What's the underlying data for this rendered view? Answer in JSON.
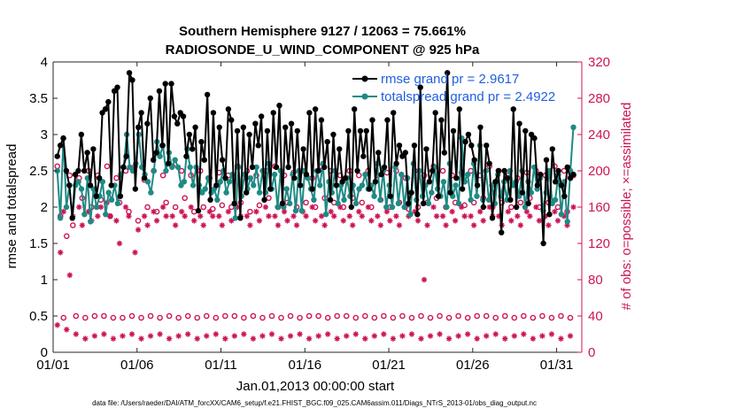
{
  "chart_data": {
    "type": "line",
    "title_line1": "Southern Hemisphere 9127 / 12063 = 75.661%",
    "title_line2": "RADIOSONDE_U_WIND_COMPONENT @ 925 hPa",
    "xlabel": "Jan.01,2013 00:00:00 start",
    "ylabel_left": "rmse and totalspread",
    "ylabel_right": "# of obs: o=possible; ×=assimilated",
    "footer": "data file: /Users/raeder/DAI/ATM_forcXX/CAM6_setup/f.e21.FHIST_BGC.f09_025.CAM6assim.011/Diags_NTrS_2013-01/obs_diag_output.nc",
    "xlim": [
      0,
      31.5
    ],
    "ylim_left": [
      0,
      4
    ],
    "ylim_right": [
      0,
      320
    ],
    "x_ticks": [
      0,
      5,
      10,
      15,
      20,
      25,
      30
    ],
    "x_tick_labels": [
      "01/01",
      "01/06",
      "01/11",
      "01/16",
      "01/21",
      "01/26",
      "01/31"
    ],
    "y_left_ticks": [
      0,
      0.5,
      1,
      1.5,
      2,
      2.5,
      3,
      3.5,
      4
    ],
    "y_left_tick_labels": [
      "0",
      "0.5",
      "1",
      "1.5",
      "2",
      "2.5",
      "3",
      "3.5",
      "4"
    ],
    "y_right_ticks": [
      0,
      40,
      80,
      120,
      160,
      200,
      240,
      280,
      320
    ],
    "y_right_tick_labels": [
      "0",
      "40",
      "80",
      "120",
      "160",
      "200",
      "240",
      "280",
      "320"
    ],
    "colors": {
      "rmse": "#000000",
      "totalspread": "#1f8a84",
      "obs": "#cc1456",
      "legend_text": "#1f5fe0"
    },
    "legend": [
      {
        "name": "rmse grand pr = 2.9617",
        "series": "rmse"
      },
      {
        "name": "totalspread grand pr = 2.4922",
        "series": "totalspread"
      }
    ],
    "series": [
      {
        "name": "rmse",
        "values": [
          2.7,
          2.85,
          2.95,
          2.5,
          2.3,
          1.85,
          2.45,
          2.5,
          3.0,
          2.5,
          2.75,
          2.3,
          2.8,
          2.15,
          2.4,
          3.3,
          3.35,
          3.45,
          2.3,
          3.6,
          3.65,
          2.15,
          2.55,
          2.7,
          3.85,
          3.75,
          2.25,
          3.1,
          3.3,
          2.4,
          3.15,
          3.5,
          2.65,
          2.75,
          3.6,
          2.85,
          3.7,
          2.6,
          3.7,
          3.25,
          3.15,
          3.3,
          3.25,
          2.7,
          3.0,
          2.8,
          3.1,
          1.95,
          2.9,
          2.65,
          3.55,
          2.1,
          3.3,
          2.3,
          3.1,
          2.65,
          2.4,
          3.35,
          3.2,
          2.05,
          3.05,
          1.85,
          3.1,
          2.2,
          3.0,
          2.55,
          3.15,
          2.85,
          3.25,
          2.1,
          3.05,
          2.25,
          3.3,
          2.55,
          3.4,
          2.05,
          3.1,
          2.55,
          3.15,
          2.4,
          3.05,
          2.3,
          2.8,
          2.45,
          3.3,
          2.25,
          3.35,
          2.5,
          3.2,
          2.55,
          2.9,
          2.1,
          3.0,
          2.3,
          2.8,
          2.35,
          2.4,
          3.05,
          2.0,
          3.35,
          2.5,
          3.05,
          2.7,
          3.05,
          2.25,
          3.2,
          2.35,
          2.75,
          2.45,
          2.55,
          3.2,
          2.15,
          3.3,
          2.6,
          2.85,
          2.7,
          2.75,
          2.05,
          2.2,
          2.85,
          1.9,
          3.65,
          2.05,
          2.8,
          2.35,
          2.5,
          3.3,
          2.15,
          3.2,
          2.75,
          3.85,
          2.2,
          3.05,
          2.4,
          3.35,
          2.25,
          2.9,
          3.0,
          2.85,
          2.65,
          2.3,
          3.1,
          2.0,
          2.85,
          2.6,
          1.85,
          2.35,
          2.5,
          1.65,
          2.5,
          2.4,
          2.1,
          3.35,
          2.0,
          3.15,
          2.2,
          3.05,
          2.05,
          3.0,
          2.95,
          2.3,
          2.45,
          1.5,
          2.65,
          1.9,
          2.8,
          2.35,
          2.5,
          2.3,
          2.15,
          2.55,
          2.4,
          2.45
        ]
      },
      {
        "name": "totalspread",
        "values": [
          2.5,
          1.85,
          2.95,
          2.0,
          2.3,
          1.85,
          2.3,
          2.35,
          2.25,
          1.9,
          2.4,
          1.8,
          2.25,
          2.0,
          2.15,
          2.35,
          1.9,
          2.2,
          2.1,
          2.3,
          2.05,
          2.45,
          2.55,
          3.0,
          2.55,
          2.5,
          2.6,
          3.0,
          2.55,
          2.45,
          2.35,
          2.2,
          2.5,
          2.9,
          2.7,
          2.85,
          2.5,
          2.75,
          2.55,
          2.65,
          2.55,
          2.3,
          2.35,
          2.8,
          2.55,
          2.3,
          2.55,
          2.3,
          2.2,
          2.25,
          2.4,
          2.2,
          2.25,
          2.1,
          2.35,
          2.5,
          2.2,
          2.35,
          2.45,
          1.85,
          2.55,
          2.15,
          2.45,
          2.25,
          2.4,
          2.3,
          2.55,
          2.2,
          2.5,
          2.2,
          2.6,
          2.25,
          2.45,
          2.0,
          2.5,
          2.0,
          2.25,
          2.05,
          2.45,
          1.95,
          2.5,
          1.95,
          2.5,
          2.4,
          2.25,
          2.1,
          2.5,
          2.3,
          2.6,
          1.9,
          2.35,
          2.2,
          2.5,
          2.05,
          2.3,
          2.1,
          2.4,
          2.15,
          2.3,
          2.05,
          2.25,
          2.3,
          2.45,
          2.25,
          2.3,
          2.15,
          2.6,
          2.1,
          2.5,
          2.0,
          2.3,
          2.0,
          2.55,
          2.05,
          2.45,
          2.0,
          2.4,
          1.9,
          2.6,
          2.1,
          2.5,
          2.15,
          2.3,
          2.05,
          2.2,
          2.55,
          2.25,
          2.15,
          2.35,
          2.0,
          2.6,
          2.15,
          2.3,
          2.05,
          2.95,
          2.35,
          2.45,
          2.1,
          2.6,
          2.15,
          2.85,
          2.1,
          2.5,
          2.1,
          2.3,
          2.05,
          2.45,
          2.15,
          2.35,
          2.1,
          2.5,
          2.3,
          2.35,
          2.15,
          2.5,
          2.0,
          2.35,
          2.2,
          2.55,
          2.25,
          2.4,
          1.95,
          2.2,
          2.5,
          2.05,
          2.1,
          2.45,
          1.9,
          2.35,
          1.8,
          2.5,
          3.1
        ]
      },
      {
        "name": "obs_possible",
        "axis": "right",
        "values": [
          205,
          150,
          38,
          128,
          195,
          140,
          40,
          192,
          170,
          38,
          200,
          160,
          40,
          195,
          168,
          40,
          205,
          150,
          38,
          192,
          165,
          38,
          200,
          155,
          40,
          205,
          145,
          38,
          190,
          160,
          40,
          200,
          155,
          38,
          195,
          165,
          40,
          205,
          160,
          38,
          200,
          170,
          40,
          195,
          155,
          38,
          200,
          160,
          40,
          192,
          158,
          38,
          198,
          162,
          40,
          195,
          160,
          40,
          205,
          165,
          38,
          200,
          155,
          40,
          195,
          162,
          38,
          200,
          170,
          40,
          205,
          160,
          38,
          195,
          165,
          40,
          198,
          160,
          38,
          200,
          165,
          40,
          192,
          160,
          40,
          205,
          170,
          38,
          200,
          165,
          40,
          195,
          160,
          40,
          200,
          170,
          38,
          195,
          165,
          40,
          200,
          160,
          38,
          195,
          168,
          40,
          198,
          160,
          38,
          200,
          165,
          40,
          192,
          158,
          38,
          200,
          160,
          40,
          195,
          165,
          38,
          205,
          170,
          40,
          200,
          160,
          38,
          195,
          165,
          40,
          198,
          162,
          38,
          200,
          165,
          40,
          195,
          170,
          40,
          205,
          160,
          38,
          200,
          165,
          40,
          195,
          160,
          38,
          192,
          165,
          40,
          198,
          170,
          38,
          200,
          160,
          40,
          195,
          165,
          38,
          205,
          160,
          40,
          200,
          155,
          38,
          195
        ]
      },
      {
        "name": "obs_assimilated",
        "axis": "right",
        "values": [
          30,
          110,
          155,
          25,
          85,
          150,
          20,
          160,
          140,
          15,
          155,
          145,
          18,
          150,
          160,
          20,
          165,
          150,
          15,
          145,
          120,
          18,
          160,
          150,
          20,
          110,
          135,
          15,
          150,
          140,
          18,
          155,
          145,
          20,
          160,
          150,
          15,
          150,
          140,
          18,
          155,
          150,
          20,
          160,
          145,
          15,
          150,
          140,
          18,
          155,
          150,
          20,
          150,
          140,
          15,
          155,
          145,
          18,
          160,
          150,
          20,
          150,
          140,
          15,
          155,
          145,
          18,
          160,
          150,
          20,
          150,
          140,
          15,
          155,
          145,
          18,
          150,
          140,
          20,
          155,
          150,
          15,
          160,
          145,
          18,
          150,
          140,
          20,
          155,
          150,
          15,
          160,
          145,
          18,
          150,
          140,
          20,
          155,
          150,
          15,
          160,
          145,
          18,
          150,
          140,
          20,
          155,
          145,
          15,
          150,
          140,
          18,
          160,
          150,
          20,
          155,
          145,
          15,
          80,
          140,
          18,
          160,
          150,
          20,
          150,
          140,
          15,
          155,
          145,
          18,
          160,
          150,
          20,
          150,
          140,
          15,
          155,
          145,
          18,
          160,
          150,
          20,
          150,
          140,
          15,
          155,
          145,
          18,
          150,
          140,
          20,
          155,
          150,
          15,
          160,
          145,
          18,
          150,
          140,
          20,
          155,
          145,
          15,
          150,
          140,
          18,
          160
        ]
      }
    ]
  }
}
